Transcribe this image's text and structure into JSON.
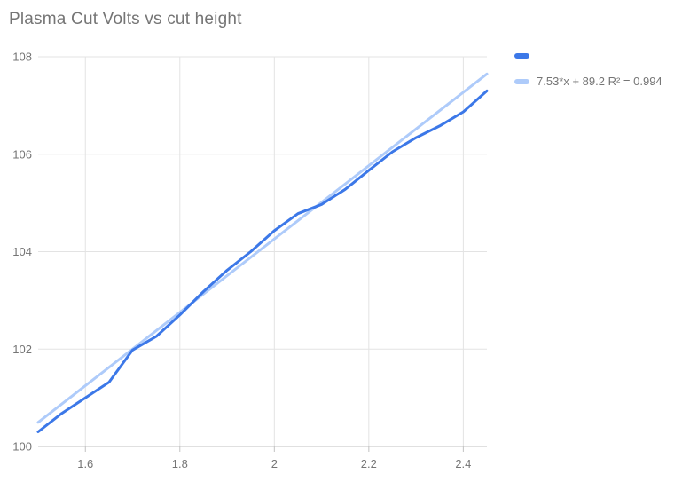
{
  "title": "Plasma Cut Volts vs cut height",
  "colors": {
    "series_blue": "#3c78e8",
    "trendline_light_blue": "#aecbfa",
    "title_gray": "#757575",
    "tick_label_gray": "#757575",
    "gridline_gray": "#e3e3e3",
    "axis_gray": "#c2c2c2",
    "background": "#ffffff"
  },
  "legend": {
    "series_label": "",
    "trend_label": "7.53*x + 89.2 R² = 0.994"
  },
  "chart_data": {
    "type": "line",
    "title": "Plasma Cut Volts vs cut height",
    "xlabel": "",
    "ylabel": "",
    "xlim": [
      1.5,
      2.45
    ],
    "ylim": [
      100,
      108
    ],
    "grid": true,
    "legend_position": "top-right",
    "x_ticks": [
      1.6,
      1.8,
      2,
      2.2,
      2.4
    ],
    "x_tick_labels": [
      "1.6",
      "1.8",
      "2",
      "2.2",
      "2.4"
    ],
    "y_ticks": [
      100,
      102,
      104,
      106,
      108
    ],
    "y_tick_labels": [
      "100",
      "102",
      "104",
      "106",
      "108"
    ],
    "series": [
      {
        "name": "",
        "role": "data",
        "color": "#3c78e8",
        "x": [
          1.5,
          1.55,
          1.6,
          1.65,
          1.7,
          1.75,
          1.8,
          1.85,
          1.9,
          1.95,
          2.0,
          2.05,
          2.1,
          2.15,
          2.2,
          2.25,
          2.3,
          2.35,
          2.4,
          2.45
        ],
        "values": [
          100.3,
          100.68,
          101.0,
          101.32,
          101.98,
          102.26,
          102.7,
          103.18,
          103.62,
          104.0,
          104.43,
          104.78,
          104.97,
          105.28,
          105.67,
          106.05,
          106.34,
          106.58,
          106.87,
          107.3
        ]
      },
      {
        "name": "7.53*x + 89.2 R² = 0.994",
        "role": "trendline",
        "equation": "7.53*x + 89.2",
        "r_squared": "0.994",
        "color": "#aecbfa",
        "x": [
          1.5,
          2.45
        ],
        "values": [
          100.495,
          107.6485
        ]
      }
    ]
  }
}
